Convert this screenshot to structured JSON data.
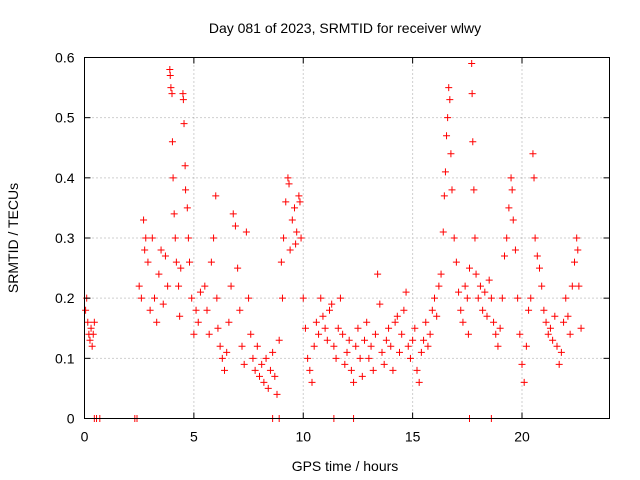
{
  "chart_data": {
    "type": "scatter",
    "title": "Day 081 of 2023, SRMTID for receiver wlwy",
    "xlabel": "GPS time / hours",
    "ylabel": "SRMTID / TECUs",
    "xlim": [
      0,
      24
    ],
    "ylim": [
      0,
      0.6
    ],
    "xticks": [
      0,
      5,
      10,
      15,
      20
    ],
    "yticks": [
      0,
      0.1,
      0.2,
      0.3,
      0.4,
      0.5,
      0.6
    ],
    "grid": true,
    "marker": "plus",
    "color": "#ff0000",
    "series": [
      {
        "name": "SRMTID",
        "points": [
          [
            0.05,
            0.18
          ],
          [
            0.1,
            0.2
          ],
          [
            0.15,
            0.16
          ],
          [
            0.2,
            0.14
          ],
          [
            0.25,
            0.13
          ],
          [
            0.3,
            0.15
          ],
          [
            0.35,
            0.12
          ],
          [
            0.4,
            0.14
          ],
          [
            0.45,
            0.16
          ],
          [
            0.45,
            0.0
          ],
          [
            0.55,
            0.0
          ],
          [
            0.7,
            0.0
          ],
          [
            2.3,
            0.0
          ],
          [
            2.4,
            0.0
          ],
          [
            8.6,
            0.0
          ],
          [
            8.9,
            0.0
          ],
          [
            11.4,
            0.0
          ],
          [
            12.3,
            0.0
          ],
          [
            17.6,
            0.0
          ],
          [
            18.6,
            0.0
          ],
          [
            2.5,
            0.22
          ],
          [
            2.6,
            0.2
          ],
          [
            2.7,
            0.33
          ],
          [
            2.75,
            0.28
          ],
          [
            2.8,
            0.3
          ],
          [
            2.9,
            0.26
          ],
          [
            3.0,
            0.18
          ],
          [
            3.1,
            0.3
          ],
          [
            3.2,
            0.2
          ],
          [
            3.3,
            0.16
          ],
          [
            3.4,
            0.24
          ],
          [
            3.5,
            0.28
          ],
          [
            3.6,
            0.19
          ],
          [
            3.7,
            0.27
          ],
          [
            3.8,
            0.22
          ],
          [
            3.9,
            0.58
          ],
          [
            3.92,
            0.57
          ],
          [
            3.95,
            0.55
          ],
          [
            4.0,
            0.54
          ],
          [
            4.02,
            0.46
          ],
          [
            4.05,
            0.4
          ],
          [
            4.1,
            0.34
          ],
          [
            4.15,
            0.3
          ],
          [
            4.2,
            0.26
          ],
          [
            4.3,
            0.22
          ],
          [
            4.35,
            0.17
          ],
          [
            4.4,
            0.25
          ],
          [
            4.5,
            0.54
          ],
          [
            4.52,
            0.53
          ],
          [
            4.55,
            0.49
          ],
          [
            4.6,
            0.42
          ],
          [
            4.62,
            0.38
          ],
          [
            4.7,
            0.35
          ],
          [
            4.75,
            0.3
          ],
          [
            4.8,
            0.26
          ],
          [
            4.9,
            0.2
          ],
          [
            5.0,
            0.14
          ],
          [
            5.1,
            0.18
          ],
          [
            5.2,
            0.16
          ],
          [
            5.3,
            0.21
          ],
          [
            5.5,
            0.22
          ],
          [
            5.6,
            0.18
          ],
          [
            5.7,
            0.14
          ],
          [
            5.8,
            0.26
          ],
          [
            5.9,
            0.3
          ],
          [
            6.0,
            0.37
          ],
          [
            6.05,
            0.2
          ],
          [
            6.1,
            0.15
          ],
          [
            6.2,
            0.12
          ],
          [
            6.3,
            0.1
          ],
          [
            6.4,
            0.08
          ],
          [
            6.5,
            0.11
          ],
          [
            6.6,
            0.16
          ],
          [
            6.7,
            0.22
          ],
          [
            6.8,
            0.34
          ],
          [
            6.9,
            0.32
          ],
          [
            7.0,
            0.25
          ],
          [
            7.1,
            0.18
          ],
          [
            7.2,
            0.12
          ],
          [
            7.3,
            0.09
          ],
          [
            7.4,
            0.31
          ],
          [
            7.5,
            0.2
          ],
          [
            7.6,
            0.14
          ],
          [
            7.7,
            0.1
          ],
          [
            7.8,
            0.08
          ],
          [
            7.9,
            0.12
          ],
          [
            8.0,
            0.07
          ],
          [
            8.1,
            0.09
          ],
          [
            8.2,
            0.06
          ],
          [
            8.3,
            0.1
          ],
          [
            8.4,
            0.05
          ],
          [
            8.5,
            0.08
          ],
          [
            8.6,
            0.11
          ],
          [
            8.7,
            0.07
          ],
          [
            8.8,
            0.04
          ],
          [
            8.9,
            0.13
          ],
          [
            9.0,
            0.26
          ],
          [
            9.05,
            0.2
          ],
          [
            9.1,
            0.3
          ],
          [
            9.2,
            0.36
          ],
          [
            9.3,
            0.4
          ],
          [
            9.35,
            0.39
          ],
          [
            9.4,
            0.28
          ],
          [
            9.5,
            0.33
          ],
          [
            9.6,
            0.35
          ],
          [
            9.65,
            0.29
          ],
          [
            9.7,
            0.31
          ],
          [
            9.8,
            0.37
          ],
          [
            9.85,
            0.36
          ],
          [
            9.9,
            0.3
          ],
          [
            10.0,
            0.2
          ],
          [
            10.1,
            0.15
          ],
          [
            10.2,
            0.1
          ],
          [
            10.3,
            0.08
          ],
          [
            10.4,
            0.06
          ],
          [
            10.5,
            0.12
          ],
          [
            10.6,
            0.16
          ],
          [
            10.7,
            0.14
          ],
          [
            10.8,
            0.2
          ],
          [
            10.9,
            0.17
          ],
          [
            11.0,
            0.15
          ],
          [
            11.1,
            0.13
          ],
          [
            11.2,
            0.18
          ],
          [
            11.3,
            0.19
          ],
          [
            11.4,
            0.12
          ],
          [
            11.5,
            0.1
          ],
          [
            11.6,
            0.15
          ],
          [
            11.7,
            0.2
          ],
          [
            11.8,
            0.14
          ],
          [
            11.9,
            0.09
          ],
          [
            12.0,
            0.11
          ],
          [
            12.1,
            0.13
          ],
          [
            12.2,
            0.08
          ],
          [
            12.3,
            0.06
          ],
          [
            12.4,
            0.12
          ],
          [
            12.5,
            0.15
          ],
          [
            12.6,
            0.1
          ],
          [
            12.7,
            0.07
          ],
          [
            12.8,
            0.13
          ],
          [
            12.9,
            0.16
          ],
          [
            13.0,
            0.1
          ],
          [
            13.1,
            0.12
          ],
          [
            13.2,
            0.08
          ],
          [
            13.3,
            0.14
          ],
          [
            13.4,
            0.24
          ],
          [
            13.5,
            0.19
          ],
          [
            13.6,
            0.11
          ],
          [
            13.7,
            0.09
          ],
          [
            13.8,
            0.13
          ],
          [
            13.9,
            0.15
          ],
          [
            14.0,
            0.12
          ],
          [
            14.1,
            0.08
          ],
          [
            14.2,
            0.16
          ],
          [
            14.3,
            0.17
          ],
          [
            14.4,
            0.11
          ],
          [
            14.5,
            0.14
          ],
          [
            14.6,
            0.18
          ],
          [
            14.7,
            0.21
          ],
          [
            14.8,
            0.12
          ],
          [
            14.9,
            0.1
          ],
          [
            15.0,
            0.13
          ],
          [
            15.1,
            0.15
          ],
          [
            15.2,
            0.08
          ],
          [
            15.3,
            0.06
          ],
          [
            15.4,
            0.11
          ],
          [
            15.5,
            0.13
          ],
          [
            15.6,
            0.16
          ],
          [
            15.7,
            0.12
          ],
          [
            15.8,
            0.14
          ],
          [
            15.9,
            0.18
          ],
          [
            16.0,
            0.2
          ],
          [
            16.1,
            0.17
          ],
          [
            16.2,
            0.22
          ],
          [
            16.3,
            0.24
          ],
          [
            16.4,
            0.31
          ],
          [
            16.45,
            0.37
          ],
          [
            16.5,
            0.41
          ],
          [
            16.55,
            0.47
          ],
          [
            16.6,
            0.5
          ],
          [
            16.65,
            0.55
          ],
          [
            16.7,
            0.53
          ],
          [
            16.75,
            0.44
          ],
          [
            16.8,
            0.38
          ],
          [
            16.9,
            0.3
          ],
          [
            17.0,
            0.26
          ],
          [
            17.1,
            0.21
          ],
          [
            17.2,
            0.18
          ],
          [
            17.3,
            0.16
          ],
          [
            17.4,
            0.22
          ],
          [
            17.5,
            0.2
          ],
          [
            17.55,
            0.14
          ],
          [
            17.6,
            0.25
          ],
          [
            17.7,
            0.59
          ],
          [
            17.72,
            0.54
          ],
          [
            17.75,
            0.46
          ],
          [
            17.8,
            0.38
          ],
          [
            17.85,
            0.3
          ],
          [
            17.9,
            0.24
          ],
          [
            18.0,
            0.2
          ],
          [
            18.1,
            0.22
          ],
          [
            18.2,
            0.18
          ],
          [
            18.3,
            0.21
          ],
          [
            18.4,
            0.17
          ],
          [
            18.5,
            0.23
          ],
          [
            18.6,
            0.2
          ],
          [
            18.7,
            0.16
          ],
          [
            18.8,
            0.14
          ],
          [
            18.9,
            0.12
          ],
          [
            19.0,
            0.15
          ],
          [
            19.1,
            0.2
          ],
          [
            19.2,
            0.27
          ],
          [
            19.3,
            0.3
          ],
          [
            19.4,
            0.35
          ],
          [
            19.5,
            0.4
          ],
          [
            19.55,
            0.38
          ],
          [
            19.6,
            0.33
          ],
          [
            19.7,
            0.28
          ],
          [
            19.8,
            0.2
          ],
          [
            19.9,
            0.14
          ],
          [
            20.0,
            0.09
          ],
          [
            20.1,
            0.06
          ],
          [
            20.2,
            0.12
          ],
          [
            20.3,
            0.18
          ],
          [
            20.4,
            0.2
          ],
          [
            20.5,
            0.44
          ],
          [
            20.55,
            0.4
          ],
          [
            20.6,
            0.3
          ],
          [
            20.7,
            0.27
          ],
          [
            20.8,
            0.25
          ],
          [
            20.9,
            0.22
          ],
          [
            21.0,
            0.18
          ],
          [
            21.1,
            0.16
          ],
          [
            21.2,
            0.14
          ],
          [
            21.3,
            0.15
          ],
          [
            21.4,
            0.13
          ],
          [
            21.5,
            0.17
          ],
          [
            21.6,
            0.12
          ],
          [
            21.7,
            0.09
          ],
          [
            21.8,
            0.11
          ],
          [
            21.9,
            0.16
          ],
          [
            22.0,
            0.2
          ],
          [
            22.1,
            0.17
          ],
          [
            22.2,
            0.14
          ],
          [
            22.3,
            0.22
          ],
          [
            22.4,
            0.26
          ],
          [
            22.5,
            0.3
          ],
          [
            22.55,
            0.28
          ],
          [
            22.6,
            0.22
          ],
          [
            22.7,
            0.15
          ]
        ]
      }
    ]
  }
}
